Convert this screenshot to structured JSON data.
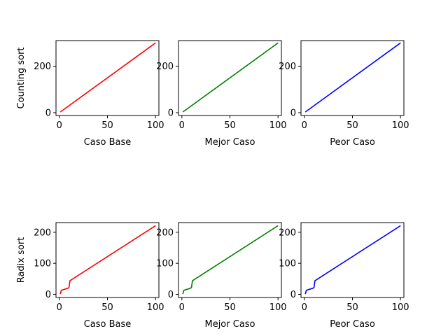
{
  "chart_data": [
    {
      "type": "line",
      "xlabel": "Caso Base",
      "ylabel": "Counting sort",
      "xlim": [
        -3.5,
        103.5
      ],
      "ylim": [
        -12,
        310
      ],
      "xticks": [
        0,
        50,
        100
      ],
      "yticks": [
        0,
        200
      ],
      "series": [
        {
          "color": "#ff0000",
          "x": [
            1,
            100
          ],
          "y": [
            3,
            300
          ]
        }
      ]
    },
    {
      "type": "line",
      "xlabel": "Mejor Caso",
      "ylabel": "",
      "xlim": [
        -3.5,
        103.5
      ],
      "ylim": [
        -12,
        310
      ],
      "xticks": [
        0,
        50,
        100
      ],
      "yticks": [
        0,
        200
      ],
      "series": [
        {
          "color": "#008000",
          "x": [
            1,
            100
          ],
          "y": [
            3,
            300
          ]
        }
      ]
    },
    {
      "type": "line",
      "xlabel": "Peor Caso",
      "ylabel": "",
      "xlim": [
        -3.5,
        103.5
      ],
      "ylim": [
        -12,
        310
      ],
      "xticks": [
        0,
        50,
        100
      ],
      "yticks": [
        0,
        200
      ],
      "series": [
        {
          "color": "#0000ff",
          "x": [
            1,
            100
          ],
          "y": [
            3,
            300
          ]
        }
      ]
    },
    {
      "type": "line",
      "xlabel": "Caso Base",
      "ylabel": "Radix sort",
      "xlim": [
        -3.5,
        103.5
      ],
      "ylim": [
        -10,
        231
      ],
      "xticks": [
        0,
        50,
        100
      ],
      "yticks": [
        0,
        100,
        200
      ],
      "series": [
        {
          "color": "#ff0000",
          "x": [
            1,
            2,
            9,
            10,
            11,
            100
          ],
          "y": [
            1,
            13,
            20,
            22,
            44,
            221
          ]
        }
      ]
    },
    {
      "type": "line",
      "xlabel": "Mejor Caso",
      "ylabel": "",
      "xlim": [
        -3.5,
        103.5
      ],
      "ylim": [
        -10,
        231
      ],
      "xticks": [
        0,
        50,
        100
      ],
      "yticks": [
        0,
        100,
        200
      ],
      "series": [
        {
          "color": "#008000",
          "x": [
            1,
            2,
            9,
            10,
            11,
            100
          ],
          "y": [
            1,
            13,
            20,
            22,
            44,
            221
          ]
        }
      ]
    },
    {
      "type": "line",
      "xlabel": "Peor Caso",
      "ylabel": "",
      "xlim": [
        -3.5,
        103.5
      ],
      "ylim": [
        -10,
        231
      ],
      "xticks": [
        0,
        50,
        100
      ],
      "yticks": [
        0,
        100,
        200
      ],
      "series": [
        {
          "color": "#0000ff",
          "x": [
            1,
            2,
            9,
            10,
            11,
            100
          ],
          "y": [
            1,
            13,
            20,
            22,
            44,
            221
          ]
        }
      ]
    }
  ]
}
